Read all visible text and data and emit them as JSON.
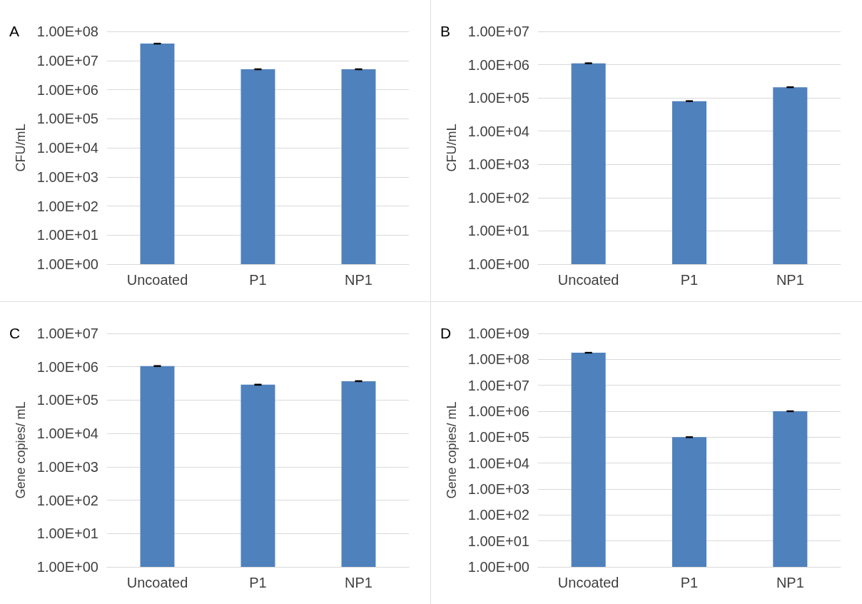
{
  "chart_data": [
    {
      "type": "bar",
      "title": "A",
      "ylabel": "CFU/mL",
      "categories": [
        "Uncoated",
        "P1",
        "NP1"
      ],
      "values": [
        38000000,
        5000000,
        5000000
      ],
      "errors": [
        1000000,
        150000,
        150000
      ],
      "color": "#4f81bd",
      "log": true,
      "ylim": [
        1,
        100000000
      ],
      "yticks": [
        {
          "value": 1,
          "label": "1.00E+00"
        },
        {
          "value": 10,
          "label": "1.00E+01"
        },
        {
          "value": 100,
          "label": "1.00E+02"
        },
        {
          "value": 1000,
          "label": "1.00E+03"
        },
        {
          "value": 10000,
          "label": "1.00E+04"
        },
        {
          "value": 100000,
          "label": "1.00E+05"
        },
        {
          "value": 1000000,
          "label": "1.00E+06"
        },
        {
          "value": 10000000,
          "label": "1.00E+07"
        },
        {
          "value": 100000000,
          "label": "1.00E+08"
        }
      ],
      "grid": "y"
    },
    {
      "type": "bar",
      "title": "B",
      "ylabel": "CFU/mL",
      "categories": [
        "Uncoated",
        "P1",
        "NP1"
      ],
      "values": [
        1100000,
        80000,
        210000
      ],
      "errors": [
        30000,
        2000,
        5000
      ],
      "color": "#4f81bd",
      "log": true,
      "ylim": [
        1,
        10000000
      ],
      "yticks": [
        {
          "value": 1,
          "label": "1.00E+00"
        },
        {
          "value": 10,
          "label": "1.00E+01"
        },
        {
          "value": 100,
          "label": "1.00E+02"
        },
        {
          "value": 1000,
          "label": "1.00E+03"
        },
        {
          "value": 10000,
          "label": "1.00E+04"
        },
        {
          "value": 100000,
          "label": "1.00E+05"
        },
        {
          "value": 1000000,
          "label": "1.00E+06"
        },
        {
          "value": 10000000,
          "label": "1.00E+07"
        }
      ],
      "grid": "y"
    },
    {
      "type": "bar",
      "title": "C",
      "ylabel": "Gene copies/ mL",
      "categories": [
        "Uncoated",
        "P1",
        "NP1"
      ],
      "values": [
        1050000,
        290000,
        370000
      ],
      "errors": [
        30000,
        8000,
        10000
      ],
      "color": "#4f81bd",
      "log": true,
      "ylim": [
        1,
        10000000
      ],
      "yticks": [
        {
          "value": 1,
          "label": "1.00E+00"
        },
        {
          "value": 10,
          "label": "1.00E+01"
        },
        {
          "value": 100,
          "label": "1.00E+02"
        },
        {
          "value": 1000,
          "label": "1.00E+03"
        },
        {
          "value": 10000,
          "label": "1.00E+04"
        },
        {
          "value": 100000,
          "label": "1.00E+05"
        },
        {
          "value": 1000000,
          "label": "1.00E+06"
        },
        {
          "value": 10000000,
          "label": "1.00E+07"
        }
      ],
      "grid": "y"
    },
    {
      "type": "bar",
      "title": "D",
      "ylabel": "Gene copies/ mL",
      "categories": [
        "Uncoated",
        "P1",
        "NP1"
      ],
      "values": [
        180000000,
        100000,
        1000000
      ],
      "errors": [
        5000000,
        3000,
        30000
      ],
      "color": "#4f81bd",
      "log": true,
      "ylim": [
        1,
        1000000000
      ],
      "yticks": [
        {
          "value": 1,
          "label": "1.00E+00"
        },
        {
          "value": 10,
          "label": "1.00E+01"
        },
        {
          "value": 100,
          "label": "1.00E+02"
        },
        {
          "value": 1000,
          "label": "1.00E+03"
        },
        {
          "value": 10000,
          "label": "1.00E+04"
        },
        {
          "value": 100000,
          "label": "1.00E+05"
        },
        {
          "value": 1000000,
          "label": "1.00E+06"
        },
        {
          "value": 10000000,
          "label": "1.00E+07"
        },
        {
          "value": 100000000,
          "label": "1.00E+08"
        },
        {
          "value": 1000000000,
          "label": "1.00E+09"
        }
      ],
      "grid": "y"
    }
  ]
}
